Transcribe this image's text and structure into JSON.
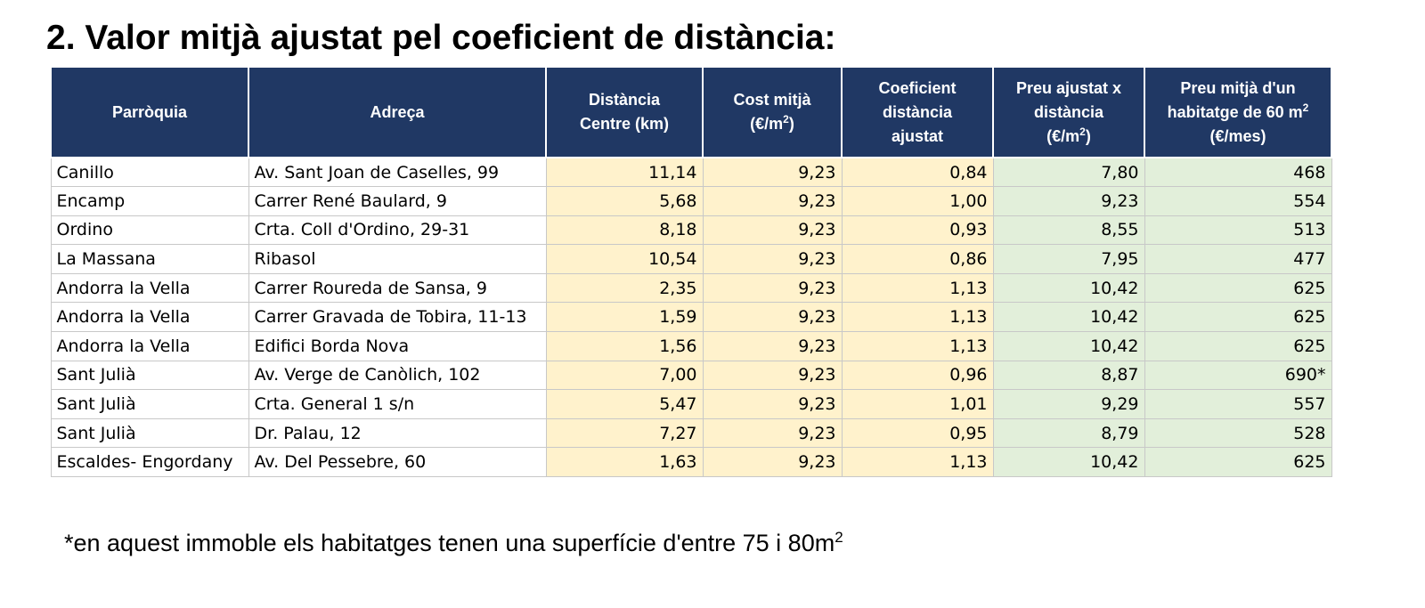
{
  "title": "2. Valor mitjà ajustat pel coeficient de distància:",
  "table": {
    "headers": {
      "parroquia": "Parròquia",
      "adreca": "Adreça",
      "distancia_l1": "Distància",
      "distancia_l2": "Centre (km)",
      "cost_l1": "Cost mitjà",
      "cost_l2": "(€/m",
      "cost_sup": "2",
      "cost_l2_end": ")",
      "coef_l1": "Coeficient",
      "coef_l2": "distància",
      "coef_l3": "ajustat",
      "preu_aj_l1": "Preu ajustat x",
      "preu_aj_l2": "distància",
      "preu_aj_l3": "(€/m",
      "preu_aj_sup": "2",
      "preu_aj_l3_end": ")",
      "preu_mitja_l1": "Preu mitjà d'un",
      "preu_mitja_l2": "habitatge de 60 m",
      "preu_mitja_sup": "2",
      "preu_mitja_l3": "(€/mes)"
    },
    "rows": [
      {
        "parroquia": "Canillo",
        "adreca": "Av. Sant Joan de Caselles, 99",
        "distancia": "11,14",
        "cost": "9,23",
        "coef": "0,84",
        "preu_aj": "7,80",
        "preu_mitja": "468"
      },
      {
        "parroquia": "Encamp",
        "adreca": "Carrer René Baulard, 9",
        "distancia": "5,68",
        "cost": "9,23",
        "coef": "1,00",
        "preu_aj": "9,23",
        "preu_mitja": "554"
      },
      {
        "parroquia": "Ordino",
        "adreca": "Crta. Coll d'Ordino, 29-31",
        "distancia": "8,18",
        "cost": "9,23",
        "coef": "0,93",
        "preu_aj": "8,55",
        "preu_mitja": "513"
      },
      {
        "parroquia": "La Massana",
        "adreca": "Ribasol",
        "distancia": "10,54",
        "cost": "9,23",
        "coef": "0,86",
        "preu_aj": "7,95",
        "preu_mitja": "477"
      },
      {
        "parroquia": "Andorra la Vella",
        "adreca": "Carrer Roureda de Sansa, 9",
        "distancia": "2,35",
        "cost": "9,23",
        "coef": "1,13",
        "preu_aj": "10,42",
        "preu_mitja": "625"
      },
      {
        "parroquia": "Andorra la Vella",
        "adreca": "Carrer Gravada de Tobira, 11-13",
        "distancia": "1,59",
        "cost": "9,23",
        "coef": "1,13",
        "preu_aj": "10,42",
        "preu_mitja": "625"
      },
      {
        "parroquia": "Andorra la Vella",
        "adreca": "Edifici Borda Nova",
        "distancia": "1,56",
        "cost": "9,23",
        "coef": "1,13",
        "preu_aj": "10,42",
        "preu_mitja": "625"
      },
      {
        "parroquia": "Sant Julià",
        "adreca": "Av. Verge de Canòlich, 102",
        "distancia": "7,00",
        "cost": "9,23",
        "coef": "0,96",
        "preu_aj": "8,87",
        "preu_mitja": "690*"
      },
      {
        "parroquia": "Sant Julià",
        "adreca": "Crta. General 1 s/n",
        "distancia": "5,47",
        "cost": "9,23",
        "coef": "1,01",
        "preu_aj": "9,29",
        "preu_mitja": "557"
      },
      {
        "parroquia": "Sant Julià",
        "adreca": "Dr. Palau, 12",
        "distancia": "7,27",
        "cost": "9,23",
        "coef": "0,95",
        "preu_aj": "8,79",
        "preu_mitja": "528"
      },
      {
        "parroquia": "Escaldes- Engordany",
        "adreca": "Av. Del Pessebre, 60",
        "distancia": "1,63",
        "cost": "9,23",
        "coef": "1,13",
        "preu_aj": "10,42",
        "preu_mitja": "625"
      }
    ]
  },
  "footnote": {
    "text": "*en aquest immoble els habitatges tenen una superfície d'entre 75 i 80m",
    "sup": "2"
  },
  "colors": {
    "header_bg": "#203864",
    "yellow_cells": "#fff2cc",
    "green_cells": "#e2efda"
  }
}
